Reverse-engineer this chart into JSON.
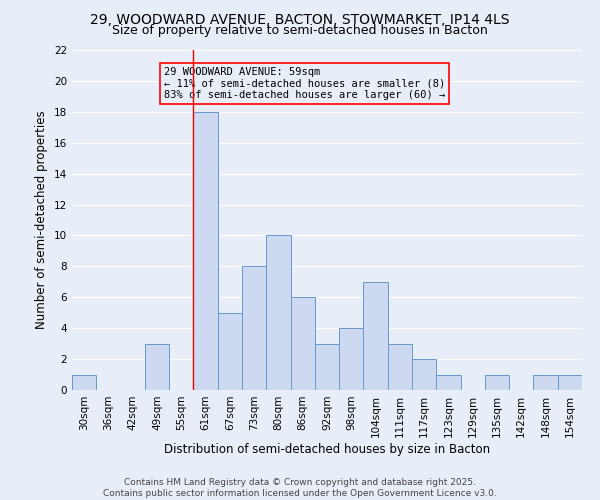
{
  "title_line1": "29, WOODWARD AVENUE, BACTON, STOWMARKET, IP14 4LS",
  "title_line2": "Size of property relative to semi-detached houses in Bacton",
  "xlabel": "Distribution of semi-detached houses by size in Bacton",
  "ylabel": "Number of semi-detached properties",
  "bins": [
    "30sqm",
    "36sqm",
    "42sqm",
    "49sqm",
    "55sqm",
    "61sqm",
    "67sqm",
    "73sqm",
    "80sqm",
    "86sqm",
    "92sqm",
    "98sqm",
    "104sqm",
    "111sqm",
    "117sqm",
    "123sqm",
    "129sqm",
    "135sqm",
    "142sqm",
    "148sqm",
    "154sqm"
  ],
  "values": [
    1,
    0,
    0,
    3,
    0,
    18,
    5,
    8,
    10,
    6,
    3,
    4,
    7,
    3,
    2,
    1,
    0,
    1,
    0,
    1,
    1
  ],
  "bar_color": "#ccd9f0",
  "bar_edge_color": "#6699cc",
  "highlight_index": 5,
  "red_line_index": 5,
  "ylim": [
    0,
    22
  ],
  "yticks": [
    0,
    2,
    4,
    6,
    8,
    10,
    12,
    14,
    16,
    18,
    20,
    22
  ],
  "annotation_text": "29 WOODWARD AVENUE: 59sqm\n← 11% of semi-detached houses are smaller (8)\n83% of semi-detached houses are larger (60) →",
  "background_color": "#e8eef8",
  "grid_color": "#ffffff",
  "footer_line1": "Contains HM Land Registry data © Crown copyright and database right 2025.",
  "footer_line2": "Contains public sector information licensed under the Open Government Licence v3.0.",
  "title_fontsize": 10,
  "subtitle_fontsize": 9,
  "axis_label_fontsize": 8.5,
  "tick_fontsize": 7.5,
  "annotation_fontsize": 7.5,
  "footer_fontsize": 6.5
}
